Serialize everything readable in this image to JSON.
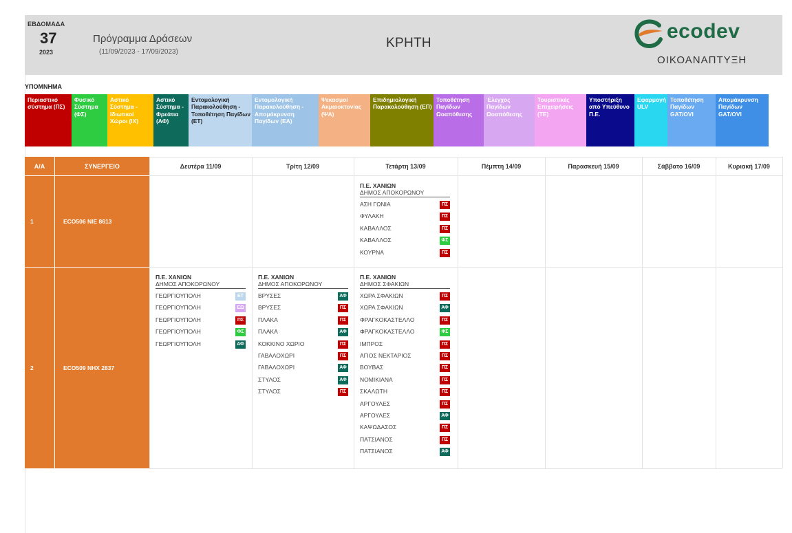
{
  "header": {
    "week_label": "ΕΒΔΟΜΑΔΑ",
    "week_number": "37",
    "year": "2023",
    "program_title": "Πρόγραμμα Δράσεων",
    "program_dates": "(11/09/2023 - 17/09/2023)",
    "region": "ΚΡΗΤΗ",
    "logo_text": "ecodev",
    "logo_subtitle": "ΟΙΚΟΑΝΑΠΤΥΞΗ"
  },
  "legend": {
    "title": "ΥΠΟΜΝΗΜΑ",
    "items": [
      {
        "label": "Περιαστικό σύστημα (ΠΣ)",
        "bg": "#c00000",
        "fg": "#ffffff"
      },
      {
        "label": "Φυσικό Σύστημα (ΦΣ)",
        "bg": "#2ecc40",
        "fg": "#ffffff"
      },
      {
        "label": "Αστικό Σύστημα - Ιδιωτικοί Χώροι (ΙΧ)",
        "bg": "#ffc000",
        "fg": "#ffffff"
      },
      {
        "label": "Αστικό Σύστημα - Φρεάτια (ΑΦ)",
        "bg": "#0e6b5c",
        "fg": "#ffffff"
      },
      {
        "label": "Εντομολογική Παρακολούθηση - Τοποθέτηση Παγίδων (ΕΤ)",
        "bg": "#bdd7ee",
        "fg": "#222222"
      },
      {
        "label": "Εντομολογική Παρακολούθηση - Απομάκρυνση Παγίδων (ΕΑ)",
        "bg": "#9dc3e6",
        "fg": "#ffffff"
      },
      {
        "label": "Ψεκασμοί Ακμαιοκτονίας (ΨΑ)",
        "bg": "#f4b183",
        "fg": "#ffffff"
      },
      {
        "label": "Επιδημιολογική Παρακολούθηση (ΕΠ)",
        "bg": "#7f7f00",
        "fg": "#ffffff"
      },
      {
        "label": "Τοποθέτηση Παγίδων Ωοαπόθεσης",
        "bg": "#b96ee8",
        "fg": "#ffffff"
      },
      {
        "label": "Έλεγχος Παγίδων Ωοαπόθεσης",
        "bg": "#d8a7f2",
        "fg": "#ffffff"
      },
      {
        "label": "Τουριστικές Επιχειρήσεις (ΤΕ)",
        "bg": "#f4a5f2",
        "fg": "#ffffff"
      },
      {
        "label": "Υποστήριξη από Υπεύθυνο Π.Ε.",
        "bg": "#0a0a8c",
        "fg": "#ffffff"
      },
      {
        "label": "Εφαρμογή ULV",
        "bg": "#29d8f0",
        "fg": "#ffffff"
      },
      {
        "label": "Τοποθέτηση Παγίδων GAT/OVI",
        "bg": "#6aaaf0",
        "fg": "#ffffff"
      },
      {
        "label": "Απομάκρυνση Παγίδων GAT/OVI",
        "bg": "#3f8fe6",
        "fg": "#ffffff"
      }
    ]
  },
  "table": {
    "col_aa": "Α/Α",
    "col_team": "ΣΥΝΕΡΓΕΙΟ",
    "days": [
      "Δευτέρα 11/09",
      "Τρίτη 12/09",
      "Τετάρτη 13/09",
      "Πέμπτη 14/09",
      "Παρασκευή 15/09",
      "Σάββατο 16/09",
      "Κυριακή 17/09"
    ],
    "rows": [
      {
        "aa": "1",
        "team": "ECO506  ΝΙΕ 8613",
        "days": [
          null,
          null,
          {
            "region": "Π.Ε. ΧΑΝΙΩΝ",
            "municipality": "ΔΗΜΟΣ ΑΠΟΚΟΡΩΝΟΥ",
            "entries": [
              {
                "place": "ΑΣΗ ΓΩΝΙΑ",
                "code": "ΠΣ",
                "color": "#c00000"
              },
              {
                "place": "ΦΥΛΑΚΗ",
                "code": "ΠΣ",
                "color": "#c00000"
              },
              {
                "place": "ΚΑΒΑΛΛΟΣ",
                "code": "ΠΣ",
                "color": "#c00000"
              },
              {
                "place": "ΚΑΒΑΛΛΟΣ",
                "code": "ΦΣ",
                "color": "#2ecc40"
              },
              {
                "place": "ΚΟΥΡΝΑ",
                "code": "ΠΣ",
                "color": "#c00000"
              }
            ]
          },
          null,
          null,
          null,
          null
        ]
      },
      {
        "aa": "2",
        "team": "ECO509  ΝΗΧ 2837",
        "days": [
          {
            "region": "Π.Ε. ΧΑΝΙΩΝ",
            "municipality": "ΔΗΜΟΣ ΑΠΟΚΟΡΩΝΟΥ",
            "entries": [
              {
                "place": "ΓΕΩΡΓΙΟΥΠΟΛΗ",
                "code": "ΕΤ",
                "color": "#bdd7ee"
              },
              {
                "place": "ΓΕΩΡΓΙΟΥΠΟΛΗ",
                "code": "ΕΩ",
                "color": "#d8a7f2"
              },
              {
                "place": "ΓΕΩΡΓΙΟΥΠΟΛΗ",
                "code": "ΠΣ",
                "color": "#c00000"
              },
              {
                "place": "ΓΕΩΡΓΙΟΥΠΟΛΗ",
                "code": "ΦΣ",
                "color": "#2ecc40"
              },
              {
                "place": "ΓΕΩΡΓΙΟΥΠΟΛΗ",
                "code": "ΑΦ",
                "color": "#0e6b5c"
              }
            ]
          },
          {
            "region": "Π.Ε. ΧΑΝΙΩΝ",
            "municipality": "ΔΗΜΟΣ ΑΠΟΚΟΡΩΝΟΥ",
            "entries": [
              {
                "place": "ΒΡΥΣΕΣ",
                "code": "ΑΦ",
                "color": "#0e6b5c"
              },
              {
                "place": "ΒΡΥΣΕΣ",
                "code": "ΠΣ",
                "color": "#c00000"
              },
              {
                "place": "ΠΛΑΚΑ",
                "code": "ΠΣ",
                "color": "#c00000"
              },
              {
                "place": "ΠΛΑΚΑ",
                "code": "ΑΦ",
                "color": "#0e6b5c"
              },
              {
                "place": "ΚΟΚΚΙΝΟ ΧΩΡΙΟ",
                "code": "ΠΣ",
                "color": "#c00000"
              },
              {
                "place": "ΓΑΒΑΛΟΧΩΡΙ",
                "code": "ΠΣ",
                "color": "#c00000"
              },
              {
                "place": "ΓΑΒΑΛΟΧΩΡΙ",
                "code": "ΑΦ",
                "color": "#0e6b5c"
              },
              {
                "place": "ΣΤΥΛΟΣ",
                "code": "ΑΦ",
                "color": "#0e6b5c"
              },
              {
                "place": "ΣΤΥΛΟΣ",
                "code": "ΠΣ",
                "color": "#c00000"
              }
            ]
          },
          {
            "region": "Π.Ε. ΧΑΝΙΩΝ",
            "municipality": "ΔΗΜΟΣ ΣΦΑΚΙΩΝ",
            "entries": [
              {
                "place": "ΧΩΡΑ ΣΦΑΚΙΩΝ",
                "code": "ΠΣ",
                "color": "#c00000"
              },
              {
                "place": "ΧΩΡΑ ΣΦΑΚΙΩΝ",
                "code": "ΑΦ",
                "color": "#0e6b5c"
              },
              {
                "place": "ΦΡΑΓΚΟΚΑΣΤΕΛΛΟ",
                "code": "ΠΣ",
                "color": "#c00000"
              },
              {
                "place": "ΦΡΑΓΚΟΚΑΣΤΕΛΛΟ",
                "code": "ΦΣ",
                "color": "#2ecc40"
              },
              {
                "place": "ΙΜΠΡΟΣ",
                "code": "ΠΣ",
                "color": "#c00000"
              },
              {
                "place": "ΑΓΙΟΣ ΝΕΚΤΑΡΙΟΣ",
                "code": "ΠΣ",
                "color": "#c00000"
              },
              {
                "place": "ΒΟΥΒΑΣ",
                "code": "ΠΣ",
                "color": "#c00000"
              },
              {
                "place": "ΝΟΜΙΚΙΑΝΑ",
                "code": "ΠΣ",
                "color": "#c00000"
              },
              {
                "place": "ΣΚΑΛΩΤΗ",
                "code": "ΠΣ",
                "color": "#c00000"
              },
              {
                "place": "ΑΡΓΟΥΛΕΣ",
                "code": "ΠΣ",
                "color": "#c00000"
              },
              {
                "place": "ΑΡΓΟΥΛΕΣ",
                "code": "ΑΦ",
                "color": "#0e6b5c"
              },
              {
                "place": "ΚΑΨΩΔΑΣΟΣ",
                "code": "ΠΣ",
                "color": "#c00000"
              },
              {
                "place": "ΠΑΤΣΙΑΝΟΣ",
                "code": "ΠΣ",
                "color": "#c00000"
              },
              {
                "place": "ΠΑΤΣΙΑΝΟΣ",
                "code": "ΑΦ",
                "color": "#0e6b5c"
              }
            ]
          },
          null,
          null,
          null,
          null
        ]
      }
    ]
  }
}
